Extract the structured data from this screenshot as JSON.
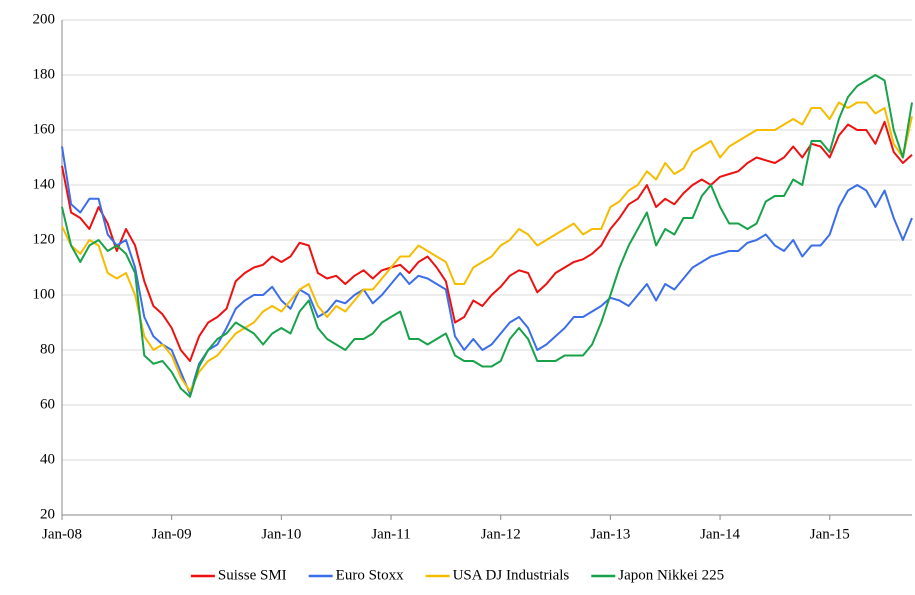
{
  "chart_data": {
    "type": "line",
    "x": [
      "2008-01",
      "2008-02",
      "2008-03",
      "2008-04",
      "2008-05",
      "2008-06",
      "2008-07",
      "2008-08",
      "2008-09",
      "2008-10",
      "2008-11",
      "2008-12",
      "2009-01",
      "2009-02",
      "2009-03",
      "2009-04",
      "2009-05",
      "2009-06",
      "2009-07",
      "2009-08",
      "2009-09",
      "2009-10",
      "2009-11",
      "2009-12",
      "2010-01",
      "2010-02",
      "2010-03",
      "2010-04",
      "2010-05",
      "2010-06",
      "2010-07",
      "2010-08",
      "2010-09",
      "2010-10",
      "2010-11",
      "2010-12",
      "2011-01",
      "2011-02",
      "2011-03",
      "2011-04",
      "2011-05",
      "2011-06",
      "2011-07",
      "2011-08",
      "2011-09",
      "2011-10",
      "2011-11",
      "2011-12",
      "2012-01",
      "2012-02",
      "2012-03",
      "2012-04",
      "2012-05",
      "2012-06",
      "2012-07",
      "2012-08",
      "2012-09",
      "2012-10",
      "2012-11",
      "2012-12",
      "2013-01",
      "2013-02",
      "2013-03",
      "2013-04",
      "2013-05",
      "2013-06",
      "2013-07",
      "2013-08",
      "2013-09",
      "2013-10",
      "2013-11",
      "2013-12",
      "2014-01",
      "2014-02",
      "2014-03",
      "2014-04",
      "2014-05",
      "2014-06",
      "2014-07",
      "2014-08",
      "2014-09",
      "2014-10",
      "2014-11",
      "2014-12",
      "2015-01",
      "2015-02",
      "2015-03",
      "2015-04",
      "2015-05",
      "2015-06",
      "2015-07",
      "2015-08",
      "2015-09",
      "2015-10"
    ],
    "series": [
      {
        "name": "Suisse SMI",
        "color": "#ee1111",
        "values": [
          147,
          130,
          128,
          124,
          132,
          126,
          116,
          124,
          118,
          105,
          96,
          93,
          88,
          80,
          76,
          85,
          90,
          92,
          95,
          105,
          108,
          110,
          111,
          114,
          112,
          114,
          119,
          118,
          108,
          106,
          107,
          104,
          107,
          109,
          106,
          109,
          110,
          111,
          108,
          112,
          114,
          110,
          105,
          90,
          92,
          98,
          96,
          100,
          103,
          107,
          109,
          108,
          101,
          104,
          108,
          110,
          112,
          113,
          115,
          118,
          124,
          128,
          133,
          135,
          140,
          132,
          135,
          133,
          137,
          140,
          142,
          140,
          143,
          144,
          145,
          148,
          150,
          149,
          148,
          150,
          154,
          150,
          155,
          154,
          150,
          158,
          162,
          160,
          160,
          155,
          163,
          152,
          148,
          151
        ]
      },
      {
        "name": "Euro Stoxx",
        "color": "#3b6ee8",
        "values": [
          154,
          133,
          130,
          135,
          135,
          122,
          118,
          120,
          110,
          92,
          85,
          82,
          80,
          72,
          64,
          75,
          80,
          82,
          88,
          95,
          98,
          100,
          100,
          103,
          98,
          95,
          102,
          100,
          92,
          94,
          98,
          97,
          100,
          102,
          97,
          100,
          104,
          108,
          104,
          107,
          106,
          104,
          102,
          85,
          80,
          84,
          80,
          82,
          86,
          90,
          92,
          88,
          80,
          82,
          85,
          88,
          92,
          92,
          94,
          96,
          99,
          98,
          96,
          100,
          104,
          98,
          104,
          102,
          106,
          110,
          112,
          114,
          115,
          116,
          116,
          119,
          120,
          122,
          118,
          116,
          120,
          114,
          118,
          118,
          122,
          132,
          138,
          140,
          138,
          132,
          138,
          128,
          120,
          128
        ]
      },
      {
        "name": "USA DJ Industrials",
        "color": "#f5bc00",
        "values": [
          125,
          118,
          115,
          120,
          118,
          108,
          106,
          108,
          100,
          85,
          80,
          82,
          78,
          70,
          65,
          72,
          76,
          78,
          82,
          86,
          88,
          90,
          94,
          96,
          94,
          98,
          102,
          104,
          96,
          92,
          96,
          94,
          98,
          102,
          102,
          106,
          110,
          114,
          114,
          118,
          116,
          114,
          112,
          104,
          104,
          110,
          112,
          114,
          118,
          120,
          124,
          122,
          118,
          120,
          122,
          124,
          126,
          122,
          124,
          124,
          132,
          134,
          138,
          140,
          145,
          142,
          148,
          144,
          146,
          152,
          154,
          156,
          150,
          154,
          156,
          158,
          160,
          160,
          160,
          162,
          164,
          162,
          168,
          168,
          164,
          170,
          168,
          170,
          170,
          166,
          168,
          155,
          150,
          165
        ]
      },
      {
        "name": "Japon Nikkei 225",
        "color": "#18a24a",
        "values": [
          132,
          118,
          112,
          118,
          120,
          116,
          118,
          115,
          108,
          78,
          75,
          76,
          72,
          66,
          63,
          74,
          80,
          84,
          86,
          90,
          88,
          86,
          82,
          86,
          88,
          86,
          94,
          98,
          88,
          84,
          82,
          80,
          84,
          84,
          86,
          90,
          92,
          94,
          84,
          84,
          82,
          84,
          86,
          78,
          76,
          76,
          74,
          74,
          76,
          84,
          88,
          84,
          76,
          76,
          76,
          78,
          78,
          78,
          82,
          90,
          100,
          110,
          118,
          124,
          130,
          118,
          124,
          122,
          128,
          128,
          136,
          140,
          132,
          126,
          126,
          124,
          126,
          134,
          136,
          136,
          142,
          140,
          156,
          156,
          152,
          164,
          172,
          176,
          178,
          180,
          178,
          160,
          150,
          170
        ]
      }
    ],
    "xlim": [
      "2008-01",
      "2015-10"
    ],
    "xticks": [
      {
        "value": "2008-01",
        "label": "Jan-08"
      },
      {
        "value": "2009-01",
        "label": "Jan-09"
      },
      {
        "value": "2010-01",
        "label": "Jan-10"
      },
      {
        "value": "2011-01",
        "label": "Jan-11"
      },
      {
        "value": "2012-01",
        "label": "Jan-12"
      },
      {
        "value": "2013-01",
        "label": "Jan-13"
      },
      {
        "value": "2014-01",
        "label": "Jan-14"
      },
      {
        "value": "2015-01",
        "label": "Jan-15"
      }
    ],
    "ylim": [
      20,
      200
    ],
    "yticks": [
      20,
      40,
      60,
      80,
      100,
      120,
      140,
      160,
      180,
      200
    ],
    "grid": true,
    "legend": "bottom"
  }
}
